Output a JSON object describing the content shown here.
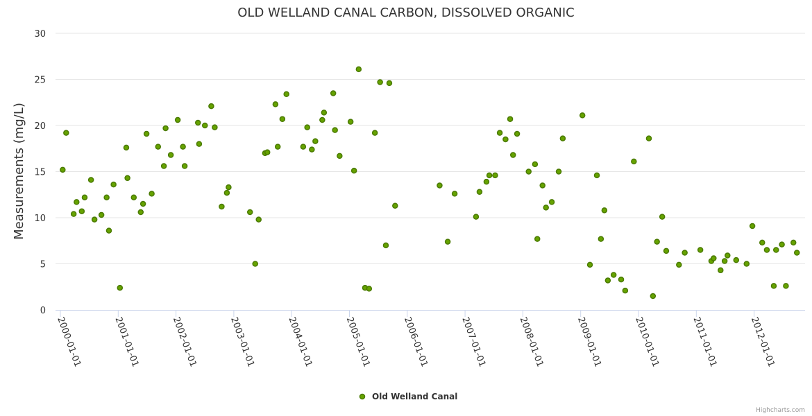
{
  "chart_data": {
    "type": "scatter",
    "title": "OLD WELLAND CANAL CARBON, DISSOLVED ORGANIC",
    "xlabel": "",
    "ylabel": "Measurements (mg/L)",
    "ylim": [
      0,
      30
    ],
    "yticks": [
      "0",
      "5",
      "10",
      "15",
      "20",
      "25",
      "30"
    ],
    "xlim": [
      1999.92,
      2012.9
    ],
    "xticks": [
      {
        "year": 2000,
        "label": "2000-01-01"
      },
      {
        "year": 2001,
        "label": "2001-01-01"
      },
      {
        "year": 2002,
        "label": "2002-01-01"
      },
      {
        "year": 2003,
        "label": "2003-01-01"
      },
      {
        "year": 2004,
        "label": "2004-01-01"
      },
      {
        "year": 2005,
        "label": "2005-01-01"
      },
      {
        "year": 2006,
        "label": "2006-01-01"
      },
      {
        "year": 2007,
        "label": "2007-01-01"
      },
      {
        "year": 2008,
        "label": "2008-01-01"
      },
      {
        "year": 2009,
        "label": "2009-01-01"
      },
      {
        "year": 2010,
        "label": "2010-01-01"
      },
      {
        "year": 2011,
        "label": "2011-01-01"
      },
      {
        "year": 2012,
        "label": "2012-01-01"
      }
    ],
    "grid": true,
    "legend_position": "bottom-center",
    "series": [
      {
        "name": "Old Welland Canal",
        "color": "#66a300",
        "points": [
          [
            2000.04,
            15.2
          ],
          [
            2000.1,
            19.2
          ],
          [
            2000.23,
            10.4
          ],
          [
            2000.28,
            11.7
          ],
          [
            2000.37,
            10.7
          ],
          [
            2000.42,
            12.2
          ],
          [
            2000.53,
            14.1
          ],
          [
            2000.59,
            9.8
          ],
          [
            2000.71,
            10.3
          ],
          [
            2000.8,
            12.2
          ],
          [
            2000.84,
            8.6
          ],
          [
            2000.92,
            13.6
          ],
          [
            2001.03,
            2.4
          ],
          [
            2001.14,
            17.6
          ],
          [
            2001.16,
            14.3
          ],
          [
            2001.27,
            12.2
          ],
          [
            2001.39,
            10.6
          ],
          [
            2001.43,
            11.5
          ],
          [
            2001.49,
            19.1
          ],
          [
            2001.58,
            12.6
          ],
          [
            2001.69,
            17.7
          ],
          [
            2001.79,
            15.6
          ],
          [
            2001.82,
            19.7
          ],
          [
            2001.91,
            16.8
          ],
          [
            2002.03,
            20.6
          ],
          [
            2002.12,
            17.7
          ],
          [
            2002.15,
            15.6
          ],
          [
            2002.38,
            20.3
          ],
          [
            2002.4,
            18.0
          ],
          [
            2002.5,
            20.0
          ],
          [
            2002.61,
            22.1
          ],
          [
            2002.67,
            19.8
          ],
          [
            2002.79,
            11.2
          ],
          [
            2002.88,
            12.7
          ],
          [
            2002.91,
            13.3
          ],
          [
            2003.28,
            10.6
          ],
          [
            2003.37,
            5.0
          ],
          [
            2003.43,
            9.8
          ],
          [
            2003.54,
            17.0
          ],
          [
            2003.58,
            17.1
          ],
          [
            2003.72,
            22.3
          ],
          [
            2003.76,
            17.7
          ],
          [
            2003.84,
            20.7
          ],
          [
            2003.91,
            23.4
          ],
          [
            2004.2,
            17.7
          ],
          [
            2004.27,
            19.8
          ],
          [
            2004.35,
            17.4
          ],
          [
            2004.41,
            18.3
          ],
          [
            2004.53,
            20.6
          ],
          [
            2004.56,
            21.4
          ],
          [
            2004.72,
            23.5
          ],
          [
            2004.75,
            19.5
          ],
          [
            2004.83,
            16.7
          ],
          [
            2005.02,
            20.4
          ],
          [
            2005.08,
            15.1
          ],
          [
            2005.16,
            26.1
          ],
          [
            2005.27,
            2.4
          ],
          [
            2005.34,
            2.3
          ],
          [
            2005.44,
            19.2
          ],
          [
            2005.53,
            24.7
          ],
          [
            2005.63,
            7.0
          ],
          [
            2005.69,
            24.6
          ],
          [
            2005.79,
            11.3
          ],
          [
            2006.56,
            13.5
          ],
          [
            2006.7,
            7.4
          ],
          [
            2006.82,
            12.6
          ],
          [
            2007.19,
            10.1
          ],
          [
            2007.25,
            12.8
          ],
          [
            2007.37,
            13.9
          ],
          [
            2007.42,
            14.6
          ],
          [
            2007.52,
            14.6
          ],
          [
            2007.6,
            19.2
          ],
          [
            2007.7,
            18.5
          ],
          [
            2007.78,
            20.7
          ],
          [
            2007.83,
            16.8
          ],
          [
            2007.9,
            19.1
          ],
          [
            2008.1,
            15.0
          ],
          [
            2008.21,
            15.8
          ],
          [
            2008.25,
            7.7
          ],
          [
            2008.34,
            13.5
          ],
          [
            2008.4,
            11.1
          ],
          [
            2008.5,
            11.7
          ],
          [
            2008.62,
            15.0
          ],
          [
            2008.69,
            18.6
          ],
          [
            2009.03,
            21.1
          ],
          [
            2009.16,
            4.9
          ],
          [
            2009.28,
            14.6
          ],
          [
            2009.35,
            7.7
          ],
          [
            2009.41,
            10.8
          ],
          [
            2009.47,
            3.2
          ],
          [
            2009.57,
            3.8
          ],
          [
            2009.7,
            3.3
          ],
          [
            2009.77,
            2.1
          ],
          [
            2009.92,
            16.1
          ],
          [
            2010.18,
            18.6
          ],
          [
            2010.25,
            1.5
          ],
          [
            2010.32,
            7.4
          ],
          [
            2010.41,
            10.1
          ],
          [
            2010.48,
            6.4
          ],
          [
            2010.7,
            4.9
          ],
          [
            2010.8,
            6.2
          ],
          [
            2011.07,
            6.5
          ],
          [
            2011.26,
            5.3
          ],
          [
            2011.3,
            5.6
          ],
          [
            2011.42,
            4.3
          ],
          [
            2011.49,
            5.3
          ],
          [
            2011.54,
            5.9
          ],
          [
            2011.69,
            5.4
          ],
          [
            2011.87,
            5.0
          ],
          [
            2011.97,
            9.1
          ],
          [
            2012.14,
            7.3
          ],
          [
            2012.22,
            6.5
          ],
          [
            2012.34,
            2.6
          ],
          [
            2012.38,
            6.5
          ],
          [
            2012.48,
            7.1
          ],
          [
            2012.55,
            2.6
          ],
          [
            2012.68,
            7.3
          ],
          [
            2012.74,
            6.2
          ]
        ]
      }
    ]
  },
  "credits": "Highcharts.com"
}
